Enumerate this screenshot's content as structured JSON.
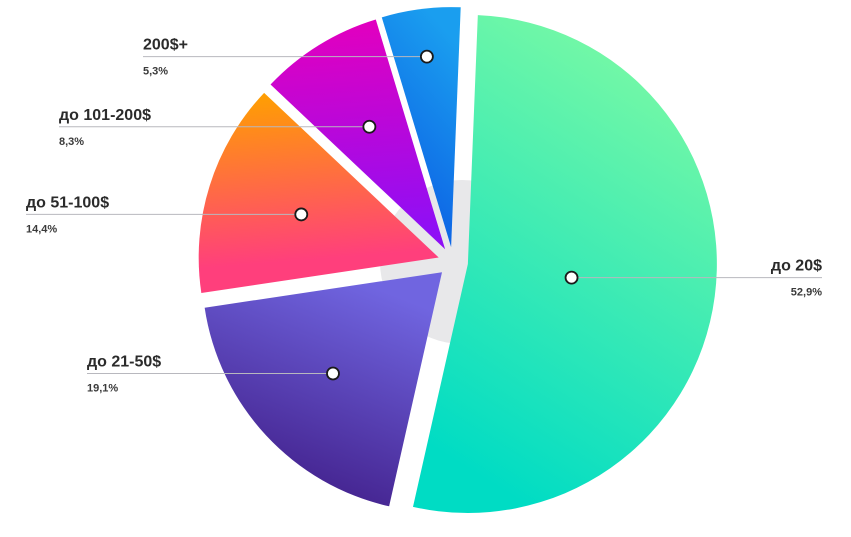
{
  "chart_data": {
    "type": "pie",
    "title": "",
    "categories": [
      "до 20$",
      "до 21-50$",
      "до 51-100$",
      "до 101-200$",
      "200$+"
    ],
    "values": [
      52.9,
      19.1,
      14.4,
      8.3,
      5.3
    ],
    "value_labels": [
      "52,9%",
      "19,1%",
      "14,4%",
      "8,3%",
      "5,3%"
    ],
    "colors": {
      "до 20$": [
        "#00dcc4",
        "#74f8a6"
      ],
      "до 21-50$": [
        "#3c1780",
        "#7065e0"
      ],
      "до 51-100$": [
        "#ff3f7c",
        "#ffa000"
      ],
      "до 101-200$": [
        "#8f0ff5",
        "#e000c0"
      ],
      "200$+": [
        "#0b59e3",
        "#1a9eef"
      ],
      "center_shadow": "#e8e8ea",
      "leader_line": "#b8b8be"
    },
    "legend": "none",
    "grid": false
  }
}
